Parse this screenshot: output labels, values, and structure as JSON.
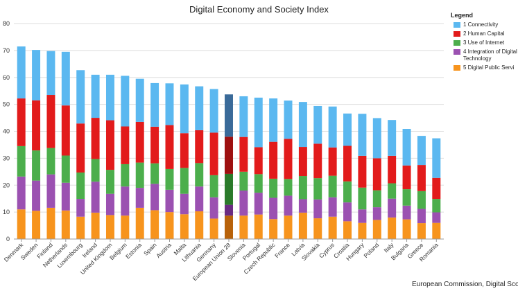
{
  "chart_data": {
    "type": "bar",
    "stacked": true,
    "title": "Digital Economy and Society Index",
    "legend": {
      "title": "Legend",
      "placement": "right"
    },
    "source": "European Commission, Digital Scoreb",
    "ylim": [
      0,
      80
    ],
    "yticks": [
      0,
      10,
      20,
      30,
      40,
      50,
      60,
      70,
      80
    ],
    "grid": true,
    "highlight": "European Union 28",
    "categories": [
      "Denmark",
      "Sweden",
      "Finland",
      "Netherlands",
      "Luxembourg",
      "Ireland",
      "United Kingdom",
      "Belgium",
      "Estonia",
      "Spain",
      "Austria",
      "Malta",
      "Lithuania",
      "Germany",
      "European Union 28",
      "Slovenia",
      "Portugal",
      "Czech Republic",
      "France",
      "Latvia",
      "Slovakia",
      "Cyprus",
      "Croatia",
      "Hungary",
      "Poland",
      "Italy",
      "Bulgaria",
      "Greece",
      "Romania"
    ],
    "series": [
      {
        "name": "5 Digital Public Servi",
        "color": "#f7941d",
        "highlight_color": "#b8620a",
        "values": [
          11.0,
          10.5,
          11.6,
          10.6,
          8.3,
          9.8,
          8.9,
          8.7,
          11.6,
          10.7,
          10.0,
          9.2,
          10.3,
          7.6,
          8.7,
          8.7,
          9.1,
          7.4,
          8.7,
          9.8,
          7.7,
          8.3,
          6.6,
          6.0,
          7.1,
          8.0,
          7.3,
          5.9,
          6.0
        ]
      },
      {
        "name": "4 Integration of Digital Technology",
        "color": "#9b51b1",
        "highlight_color": "#6a2b82",
        "values": [
          12.2,
          11.2,
          12.4,
          10.3,
          6.6,
          11.5,
          7.9,
          10.8,
          7.4,
          9.8,
          8.3,
          7.6,
          9.2,
          7.9,
          4.0,
          9.3,
          8.1,
          7.9,
          7.4,
          5.0,
          7.0,
          7.2,
          7.0,
          5.0,
          4.7,
          7.0,
          5.1,
          5.3,
          3.9
        ]
      },
      {
        "name": "3 Use of Internet",
        "color": "#4cae4c",
        "highlight_color": "#2a7a2a",
        "values": [
          11.3,
          11.2,
          9.8,
          10.1,
          9.8,
          8.4,
          8.9,
          8.3,
          9.4,
          7.6,
          7.7,
          9.6,
          8.7,
          8.2,
          11.5,
          7.0,
          6.9,
          7.1,
          6.2,
          8.6,
          7.9,
          8.0,
          7.8,
          8.1,
          6.3,
          5.7,
          6.1,
          6.6,
          5.0
        ]
      },
      {
        "name": "2 Human Capital",
        "color": "#e21b1b",
        "highlight_color": "#9e1010",
        "values": [
          17.7,
          18.6,
          19.7,
          18.6,
          18.2,
          15.3,
          18.4,
          14.0,
          15.1,
          13.6,
          16.3,
          12.9,
          12.2,
          15.8,
          13.8,
          12.9,
          10.0,
          13.7,
          14.9,
          10.8,
          12.8,
          10.5,
          13.2,
          11.8,
          11.9,
          10.2,
          8.8,
          9.7,
          7.8
        ]
      },
      {
        "name": "1 Connectivity",
        "color": "#5bb8f0",
        "highlight_color": "#3a6a99",
        "values": [
          19.3,
          18.7,
          16.3,
          19.9,
          19.8,
          16.0,
          16.9,
          18.8,
          16.0,
          16.2,
          15.5,
          18.1,
          16.3,
          16.2,
          15.7,
          15.1,
          18.4,
          16.1,
          14.2,
          16.7,
          14.0,
          15.2,
          12.0,
          15.6,
          14.9,
          13.3,
          13.6,
          10.8,
          14.7
        ]
      }
    ]
  }
}
